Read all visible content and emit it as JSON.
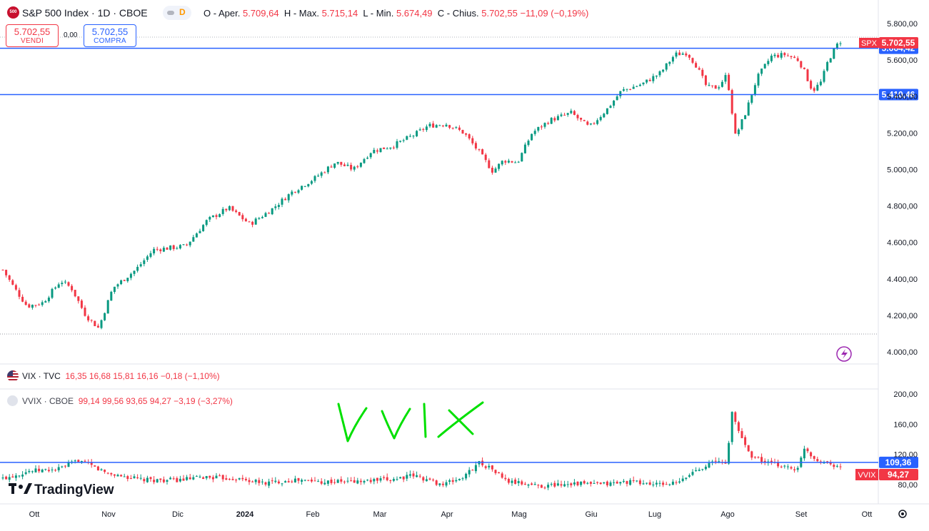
{
  "header": {
    "symbol_title": "S&P 500 Index · 1D · CBOE",
    "symbol_icon_text": "500",
    "o_label": "O",
    "o_word": "Aper.",
    "o_value": "5.709,64",
    "h_label": "H",
    "h_word": "Max.",
    "h_value": "5.715,14",
    "l_label": "L",
    "l_word": "Min.",
    "l_value": "5.674,49",
    "c_label": "C",
    "c_word": "Chius.",
    "c_value": "5.702,55",
    "change": "−11,09 (−0,19%)",
    "sell_price": "5.702,55",
    "sell_label": "VENDI",
    "spread": "0,00",
    "buy_price": "5.702,55",
    "buy_label": "COMPRA",
    "icon_d": "D"
  },
  "indicators": {
    "vix_title": "VIX · TVC",
    "vix_values": "16,35  16,68  15,81  16,16  −0,18 (−1,10%)",
    "vvix_title": "VVIX · CBOE",
    "vvix_values": "99,14  99,56  93,65  94,27  −3,19 (−3,27%)"
  },
  "annotation": {
    "text": "VVIX",
    "color": "#00e000"
  },
  "watermark": "TradingView",
  "colors": {
    "up": "#089981",
    "down": "#f23645",
    "hline": "#2962ff",
    "spx_tag": "#f23645"
  },
  "chart_data": [
    {
      "type": "candlestick",
      "series": [
        {
          "name": "SPX"
        }
      ],
      "x_axis": [
        "Ott",
        "Nov",
        "Dic",
        "2024",
        "Feb",
        "Mar",
        "Apr",
        "Mag",
        "Giu",
        "Lug",
        "Ago",
        "Set",
        "Ott"
      ],
      "y_ticks": [
        "5.800,00",
        "5.600,00",
        "5.400,00",
        "5.200,00",
        "5.000,00",
        "4.800,00",
        "4.600,00",
        "4.400,00",
        "4.200,00",
        "4.000,00"
      ],
      "ylim": [
        3950,
        5850
      ],
      "last_price": "5.702,55",
      "last_tag": "SPX",
      "horizontal_lines": [
        {
          "value": 5664.42,
          "label": "5.664,42"
        },
        {
          "value": 5410.46,
          "label": "5.410,46"
        }
      ],
      "monthly_closes": [
        {
          "x": "Ott",
          "close": 4200
        },
        {
          "x": "Nov",
          "close": 4550
        },
        {
          "x": "Dic",
          "close": 4770
        },
        {
          "x": "2024",
          "close": 4840
        },
        {
          "x": "Feb",
          "close": 5100
        },
        {
          "x": "Mar",
          "close": 5250
        },
        {
          "x": "Apr",
          "close": 5040
        },
        {
          "x": "Mag",
          "close": 5280
        },
        {
          "x": "Giu",
          "close": 5480
        },
        {
          "x": "Lug",
          "close": 5520
        },
        {
          "x": "Ago",
          "close": 5650
        },
        {
          "x": "Set",
          "close": 5700
        }
      ]
    },
    {
      "type": "candlestick",
      "series": [
        {
          "name": "VVIX"
        }
      ],
      "y_ticks": [
        "200,00",
        "160,00",
        "120,00",
        "80,00"
      ],
      "ylim": [
        70,
        205
      ],
      "last_price": "94,27",
      "last_tag": "VVIX",
      "horizontal_lines": [
        {
          "value": 109.36,
          "label": "109,36"
        }
      ]
    }
  ]
}
